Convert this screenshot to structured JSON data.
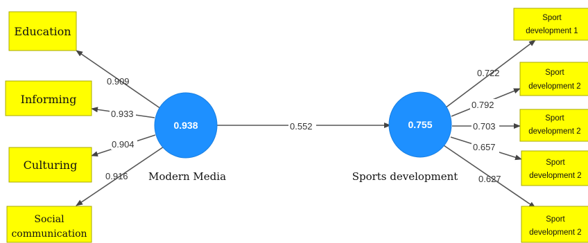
{
  "constructs": {
    "modern_media": {
      "name": "Modern Media",
      "value": "0.938"
    },
    "sports_development": {
      "name": "Sports development",
      "value": "0.755"
    }
  },
  "path_coefficient": "0.552",
  "left_indicators": [
    {
      "label": "Education",
      "loading": "0.909"
    },
    {
      "label": "Informing",
      "loading": "0.933"
    },
    {
      "label": "Culturing",
      "loading": "0.904"
    },
    {
      "label_line1": "Social",
      "label_line2": "communication",
      "loading": "0.916"
    }
  ],
  "right_indicators": [
    {
      "label_line1": "Sport",
      "label_line2": "development 1",
      "loading": "0.722"
    },
    {
      "label_line1": "Sport",
      "label_line2": "development 2",
      "loading": "0.792"
    },
    {
      "label_line1": "Sport",
      "label_line2": "development 2",
      "loading": "0.703"
    },
    {
      "label_line1": "Sport",
      "label_line2": "development 2",
      "loading": "0.657"
    },
    {
      "label_line1": "Sport",
      "label_line2": "development 2",
      "loading": "0.627"
    }
  ],
  "colors": {
    "indicator_fill": "#ffff00",
    "construct_fill": "#1e90ff",
    "arrow": "#555555"
  }
}
